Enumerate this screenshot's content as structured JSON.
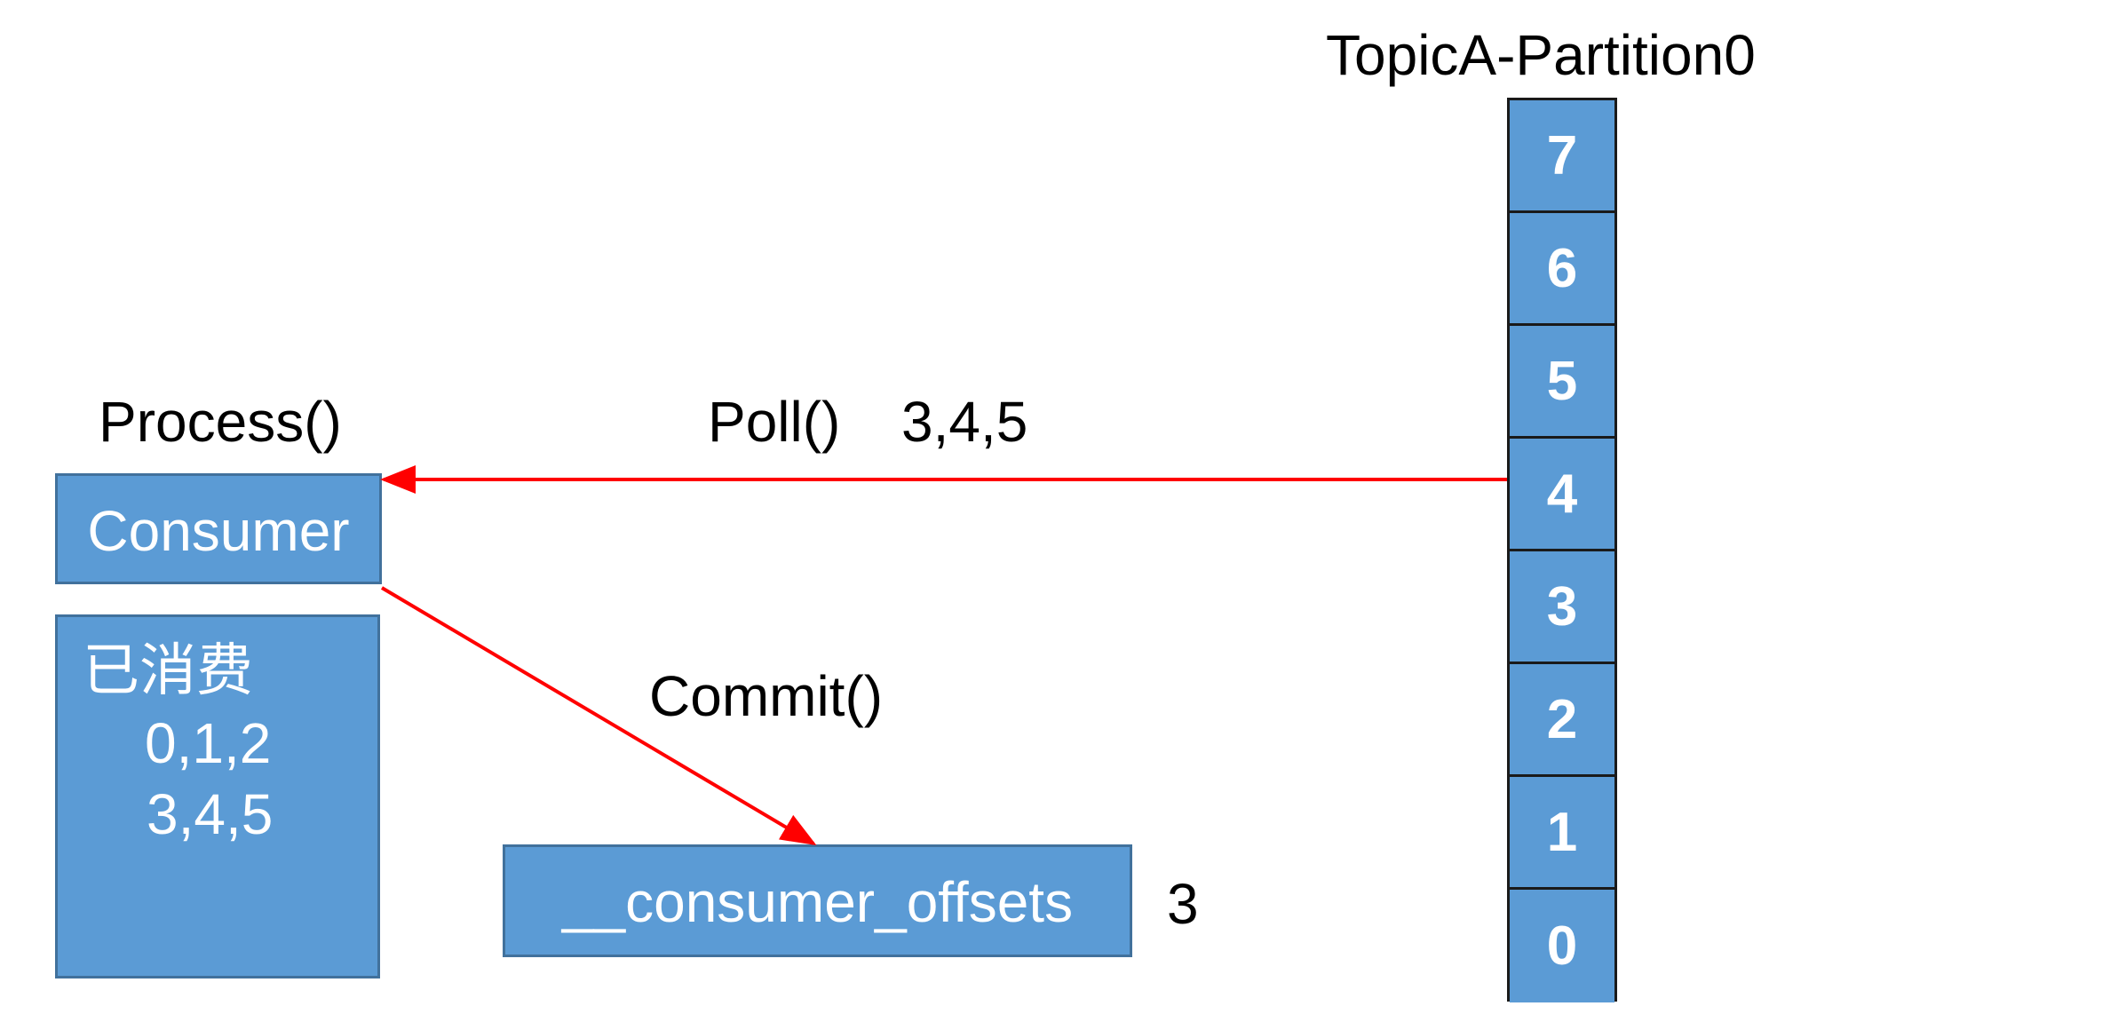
{
  "colors": {
    "box_fill": "#5b9bd5",
    "box_border": "#41719c",
    "arrow": "#ff0000",
    "text": "#000000",
    "box_text": "#ffffff"
  },
  "partition": {
    "title": "TopicA-Partition0",
    "offsets": [
      "7",
      "6",
      "5",
      "4",
      "3",
      "2",
      "1",
      "0"
    ]
  },
  "consumer": {
    "process_label": "Process()",
    "label": "Consumer"
  },
  "consumed_box": {
    "heading": "已消费",
    "line1": "0,1,2",
    "line2": "3,4,5"
  },
  "poll": {
    "label": "Poll()",
    "offsets": "3,4,5"
  },
  "commit": {
    "label": "Commit()"
  },
  "offsets_topic": {
    "label": "__consumer_offsets",
    "value": "3"
  }
}
